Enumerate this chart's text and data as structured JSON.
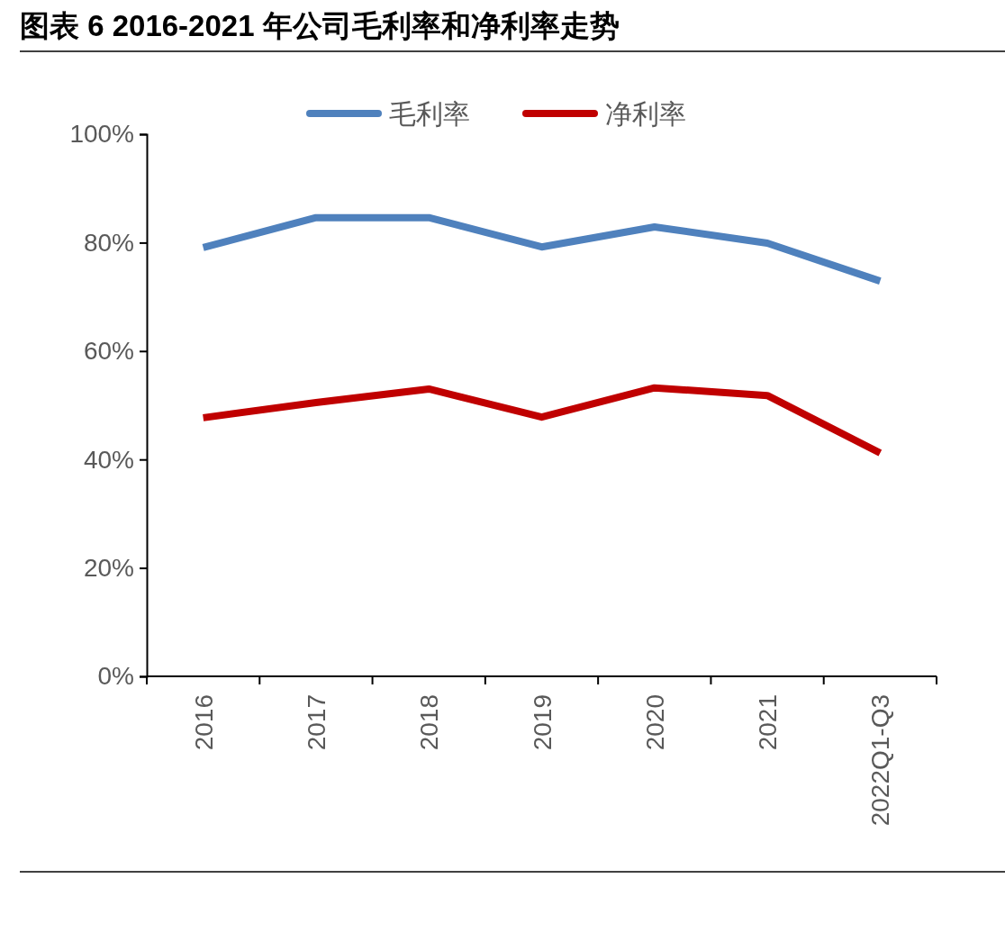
{
  "chart_data": {
    "type": "line",
    "title": "图表 6 2016-2021 年公司毛利率和净利率走势",
    "categories": [
      "2016",
      "2017",
      "2018",
      "2019",
      "2020",
      "2021",
      "2022Q1-Q3"
    ],
    "series": [
      {
        "name": "毛利率",
        "color": "#4f81bd",
        "values": [
          79.1,
          84.6,
          84.6,
          79.2,
          82.9,
          79.9,
          72.9
        ]
      },
      {
        "name": "净利率",
        "color": "#c00000",
        "values": [
          47.7,
          50.5,
          53.0,
          47.8,
          53.2,
          51.8,
          41.2
        ]
      }
    ],
    "ylim": [
      0,
      100
    ],
    "yticks": [
      {
        "value": 0,
        "label": "0%"
      },
      {
        "value": 20,
        "label": "20%"
      },
      {
        "value": 40,
        "label": "40%"
      },
      {
        "value": 60,
        "label": "60%"
      },
      {
        "value": 80,
        "label": "80%"
      },
      {
        "value": 100,
        "label": "100%"
      }
    ],
    "grid": false,
    "legend": "top",
    "marker": "none",
    "line_style": "solid"
  }
}
